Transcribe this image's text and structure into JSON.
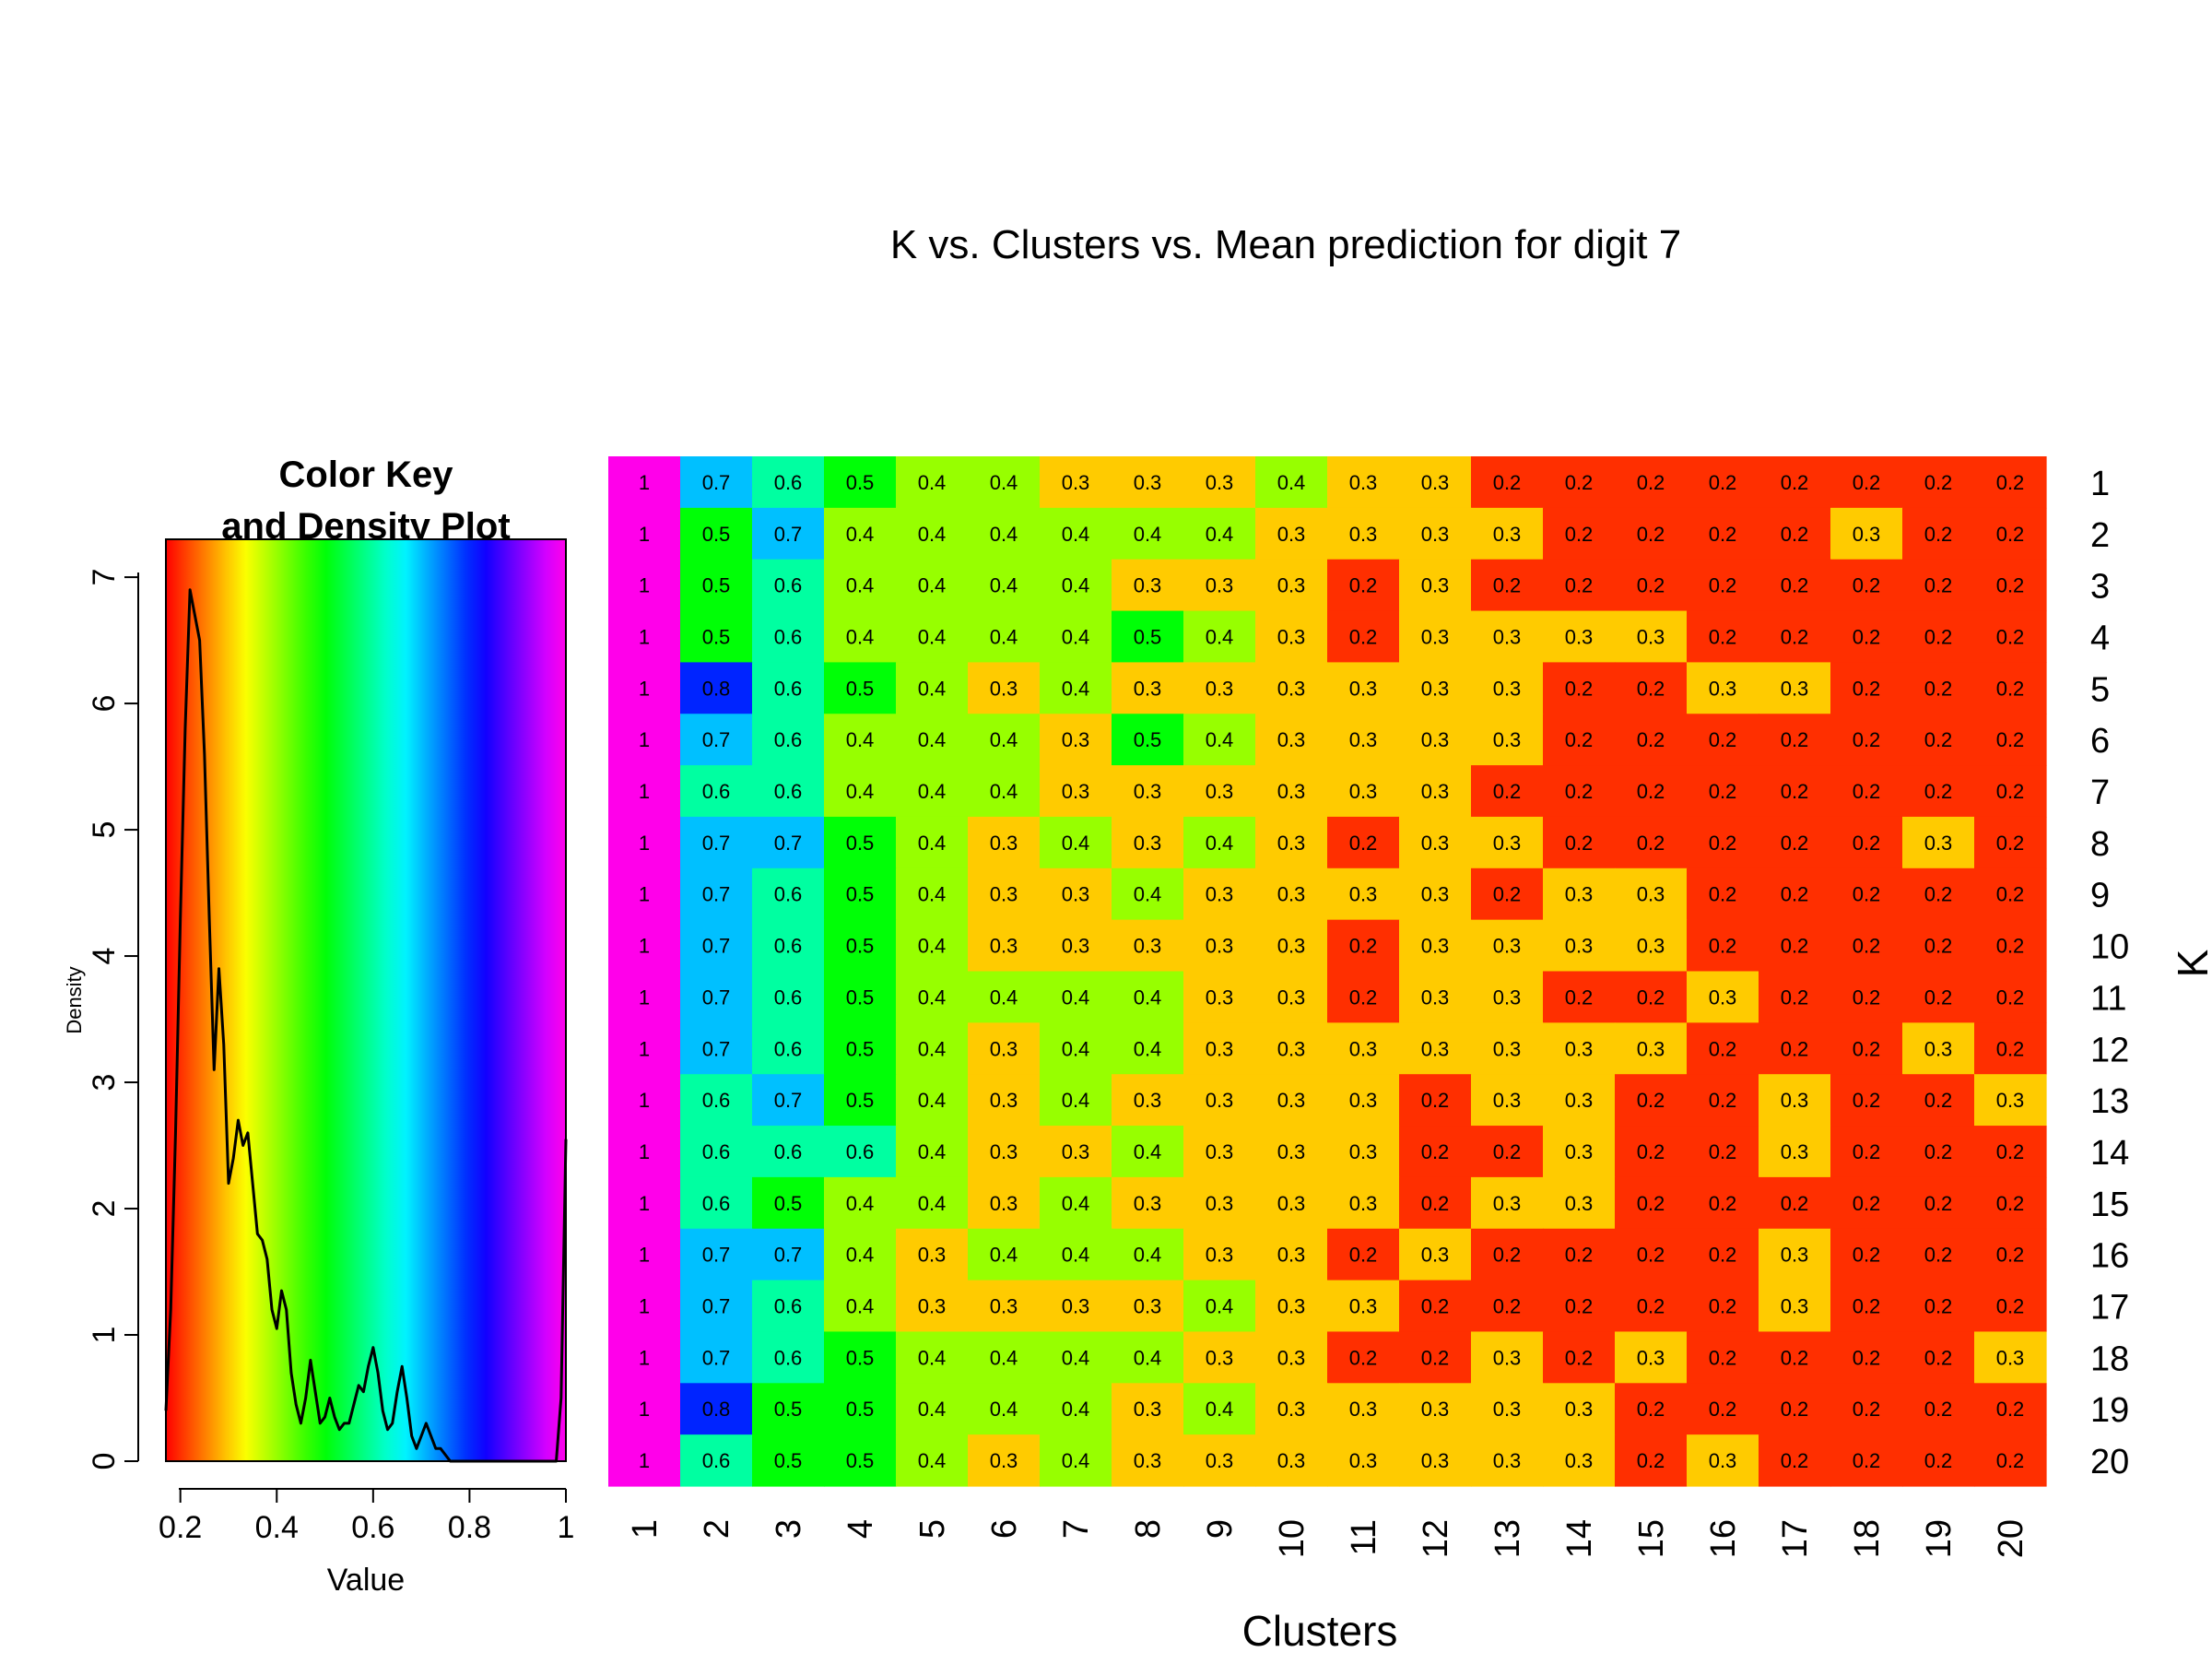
{
  "main_title": "K vs. Clusters vs. Mean prediction for digit 7",
  "key": {
    "title_line1": "Color Key",
    "title_line2": "and Density Plot",
    "xlabel": "Value",
    "ylabel": "Density",
    "x_ticks": [
      "0.2",
      "0.4",
      "0.6",
      "0.8",
      "1"
    ],
    "y_ticks": [
      "0",
      "1",
      "2",
      "3",
      "4",
      "5",
      "6",
      "7"
    ]
  },
  "heatmap": {
    "xlabel": "Clusters",
    "ylabel": "K"
  },
  "chart_data": [
    {
      "type": "heatmap",
      "title": "K vs. Clusters vs. Mean prediction for digit 7",
      "xlabel": "Clusters",
      "ylabel": "K",
      "x": [
        "1",
        "2",
        "3",
        "4",
        "5",
        "6",
        "7",
        "8",
        "9",
        "10",
        "11",
        "12",
        "13",
        "14",
        "15",
        "16",
        "17",
        "18",
        "19",
        "20"
      ],
      "y": [
        "1",
        "2",
        "3",
        "4",
        "5",
        "6",
        "7",
        "8",
        "9",
        "10",
        "11",
        "12",
        "13",
        "14",
        "15",
        "16",
        "17",
        "18",
        "19",
        "20"
      ],
      "values": [
        [
          1,
          0.7,
          0.6,
          0.5,
          0.4,
          0.4,
          0.3,
          0.3,
          0.3,
          0.4,
          0.3,
          0.3,
          0.2,
          0.2,
          0.2,
          0.2,
          0.2,
          0.2,
          0.2,
          0.2
        ],
        [
          1,
          0.5,
          0.7,
          0.4,
          0.4,
          0.4,
          0.4,
          0.4,
          0.4,
          0.3,
          0.3,
          0.3,
          0.3,
          0.2,
          0.2,
          0.2,
          0.2,
          0.3,
          0.2,
          0.2
        ],
        [
          1,
          0.5,
          0.6,
          0.4,
          0.4,
          0.4,
          0.4,
          0.3,
          0.3,
          0.3,
          0.2,
          0.3,
          0.2,
          0.2,
          0.2,
          0.2,
          0.2,
          0.2,
          0.2,
          0.2
        ],
        [
          1,
          0.5,
          0.6,
          0.4,
          0.4,
          0.4,
          0.4,
          0.5,
          0.4,
          0.3,
          0.2,
          0.3,
          0.3,
          0.3,
          0.3,
          0.2,
          0.2,
          0.2,
          0.2,
          0.2
        ],
        [
          1,
          0.8,
          0.6,
          0.5,
          0.4,
          0.3,
          0.4,
          0.3,
          0.3,
          0.3,
          0.3,
          0.3,
          0.3,
          0.2,
          0.2,
          0.3,
          0.3,
          0.2,
          0.2,
          0.2
        ],
        [
          1,
          0.7,
          0.6,
          0.4,
          0.4,
          0.4,
          0.3,
          0.5,
          0.4,
          0.3,
          0.3,
          0.3,
          0.3,
          0.2,
          0.2,
          0.2,
          0.2,
          0.2,
          0.2,
          0.2
        ],
        [
          1,
          0.6,
          0.6,
          0.4,
          0.4,
          0.4,
          0.3,
          0.3,
          0.3,
          0.3,
          0.3,
          0.3,
          0.2,
          0.2,
          0.2,
          0.2,
          0.2,
          0.2,
          0.2,
          0.2
        ],
        [
          1,
          0.7,
          0.7,
          0.5,
          0.4,
          0.3,
          0.4,
          0.3,
          0.4,
          0.3,
          0.2,
          0.3,
          0.3,
          0.2,
          0.2,
          0.2,
          0.2,
          0.2,
          0.3,
          0.2
        ],
        [
          1,
          0.7,
          0.6,
          0.5,
          0.4,
          0.3,
          0.3,
          0.4,
          0.3,
          0.3,
          0.3,
          0.3,
          0.2,
          0.3,
          0.3,
          0.2,
          0.2,
          0.2,
          0.2,
          0.2
        ],
        [
          1,
          0.7,
          0.6,
          0.5,
          0.4,
          0.3,
          0.3,
          0.3,
          0.3,
          0.3,
          0.2,
          0.3,
          0.3,
          0.3,
          0.3,
          0.2,
          0.2,
          0.2,
          0.2,
          0.2
        ],
        [
          1,
          0.7,
          0.6,
          0.5,
          0.4,
          0.4,
          0.4,
          0.4,
          0.3,
          0.3,
          0.2,
          0.3,
          0.3,
          0.2,
          0.2,
          0.3,
          0.2,
          0.2,
          0.2,
          0.2
        ],
        [
          1,
          0.7,
          0.6,
          0.5,
          0.4,
          0.3,
          0.4,
          0.4,
          0.3,
          0.3,
          0.3,
          0.3,
          0.3,
          0.3,
          0.3,
          0.2,
          0.2,
          0.2,
          0.3,
          0.2
        ],
        [
          1,
          0.6,
          0.7,
          0.5,
          0.4,
          0.3,
          0.4,
          0.3,
          0.3,
          0.3,
          0.3,
          0.2,
          0.3,
          0.3,
          0.2,
          0.2,
          0.3,
          0.2,
          0.2,
          0.3
        ],
        [
          1,
          0.6,
          0.6,
          0.6,
          0.4,
          0.3,
          0.3,
          0.4,
          0.3,
          0.3,
          0.3,
          0.2,
          0.2,
          0.3,
          0.2,
          0.2,
          0.3,
          0.2,
          0.2,
          0.2
        ],
        [
          1,
          0.6,
          0.5,
          0.4,
          0.4,
          0.3,
          0.4,
          0.3,
          0.3,
          0.3,
          0.3,
          0.2,
          0.3,
          0.3,
          0.2,
          0.2,
          0.2,
          0.2,
          0.2,
          0.2
        ],
        [
          1,
          0.7,
          0.7,
          0.4,
          0.3,
          0.4,
          0.4,
          0.4,
          0.3,
          0.3,
          0.2,
          0.3,
          0.2,
          0.2,
          0.2,
          0.2,
          0.3,
          0.2,
          0.2,
          0.2
        ],
        [
          1,
          0.7,
          0.6,
          0.4,
          0.3,
          0.3,
          0.3,
          0.3,
          0.4,
          0.3,
          0.3,
          0.2,
          0.2,
          0.2,
          0.2,
          0.2,
          0.3,
          0.2,
          0.2,
          0.2
        ],
        [
          1,
          0.7,
          0.6,
          0.5,
          0.4,
          0.4,
          0.4,
          0.4,
          0.3,
          0.3,
          0.2,
          0.2,
          0.3,
          0.2,
          0.3,
          0.2,
          0.2,
          0.2,
          0.2,
          0.3
        ],
        [
          1,
          0.8,
          0.5,
          0.5,
          0.4,
          0.4,
          0.4,
          0.3,
          0.4,
          0.3,
          0.3,
          0.3,
          0.3,
          0.3,
          0.2,
          0.2,
          0.2,
          0.2,
          0.2,
          0.2
        ],
        [
          1,
          0.6,
          0.5,
          0.5,
          0.4,
          0.3,
          0.4,
          0.3,
          0.3,
          0.3,
          0.3,
          0.3,
          0.3,
          0.3,
          0.2,
          0.3,
          0.2,
          0.2,
          0.2,
          0.2
        ]
      ],
      "value_range": [
        0.17,
        1
      ],
      "color_scale": "rainbow red-to-magenta (low=red, high=magenta)",
      "cell_labels": true
    },
    {
      "type": "line",
      "title": "Color Key\nand Density Plot",
      "xlabel": "Value",
      "ylabel": "Density",
      "xlim": [
        0.17,
        1
      ],
      "ylim": [
        0,
        7.3
      ],
      "x": [
        0.17,
        0.18,
        0.19,
        0.2,
        0.21,
        0.22,
        0.23,
        0.24,
        0.25,
        0.26,
        0.27,
        0.28,
        0.29,
        0.3,
        0.31,
        0.32,
        0.33,
        0.34,
        0.35,
        0.36,
        0.37,
        0.38,
        0.39,
        0.4,
        0.41,
        0.42,
        0.43,
        0.44,
        0.45,
        0.46,
        0.47,
        0.48,
        0.49,
        0.5,
        0.51,
        0.52,
        0.53,
        0.54,
        0.55,
        0.56,
        0.57,
        0.58,
        0.59,
        0.6,
        0.61,
        0.62,
        0.63,
        0.64,
        0.65,
        0.66,
        0.67,
        0.68,
        0.69,
        0.7,
        0.71,
        0.72,
        0.73,
        0.74,
        0.75,
        0.76,
        0.77,
        0.78,
        0.79,
        0.8,
        0.85,
        0.9,
        0.95,
        0.98,
        0.99,
        1.0
      ],
      "y": [
        0.4,
        1.2,
        2.6,
        4.3,
        5.8,
        6.9,
        6.7,
        6.5,
        5.6,
        4.3,
        3.1,
        3.9,
        3.3,
        2.2,
        2.4,
        2.7,
        2.5,
        2.6,
        2.2,
        1.8,
        1.75,
        1.6,
        1.2,
        1.05,
        1.35,
        1.2,
        0.7,
        0.45,
        0.3,
        0.5,
        0.8,
        0.55,
        0.3,
        0.35,
        0.5,
        0.35,
        0.25,
        0.3,
        0.3,
        0.45,
        0.6,
        0.55,
        0.75,
        0.9,
        0.7,
        0.4,
        0.25,
        0.3,
        0.55,
        0.75,
        0.5,
        0.2,
        0.1,
        0.2,
        0.3,
        0.2,
        0.1,
        0.1,
        0.05,
        0.0,
        0.0,
        0.0,
        0.0,
        0.0,
        0.0,
        0.0,
        0.0,
        0.0,
        0.5,
        2.55
      ]
    }
  ]
}
